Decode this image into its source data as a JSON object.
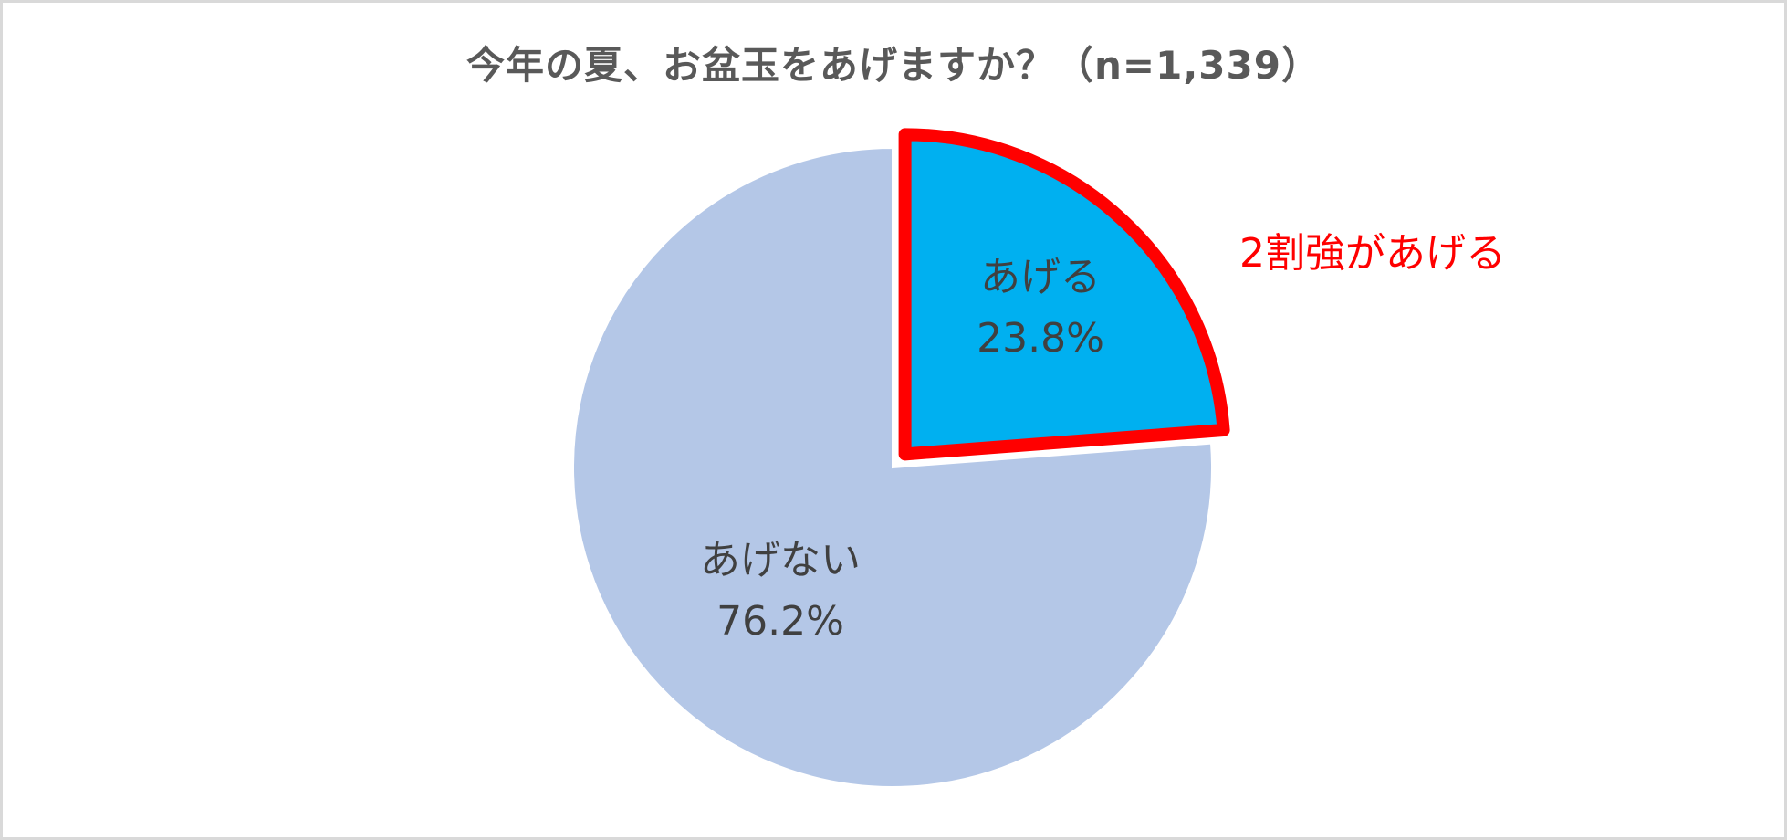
{
  "chart_data": {
    "type": "pie",
    "title": "今年の夏、お盆玉をあげますか？（n=1,339）",
    "slices": [
      {
        "label": "あげる",
        "value": 23.8,
        "value_label": "23.8%",
        "color": "#00b0f0",
        "exploded": true,
        "outline_color": "#ff0000"
      },
      {
        "label": "あげない",
        "value": 76.2,
        "value_label": "76.2%",
        "color": "#b4c7e7",
        "exploded": false
      }
    ],
    "start_angle": "12 o'clock",
    "direction": "clockwise",
    "annotation": {
      "text": "2割強があげる",
      "color": "#ff0000"
    }
  }
}
